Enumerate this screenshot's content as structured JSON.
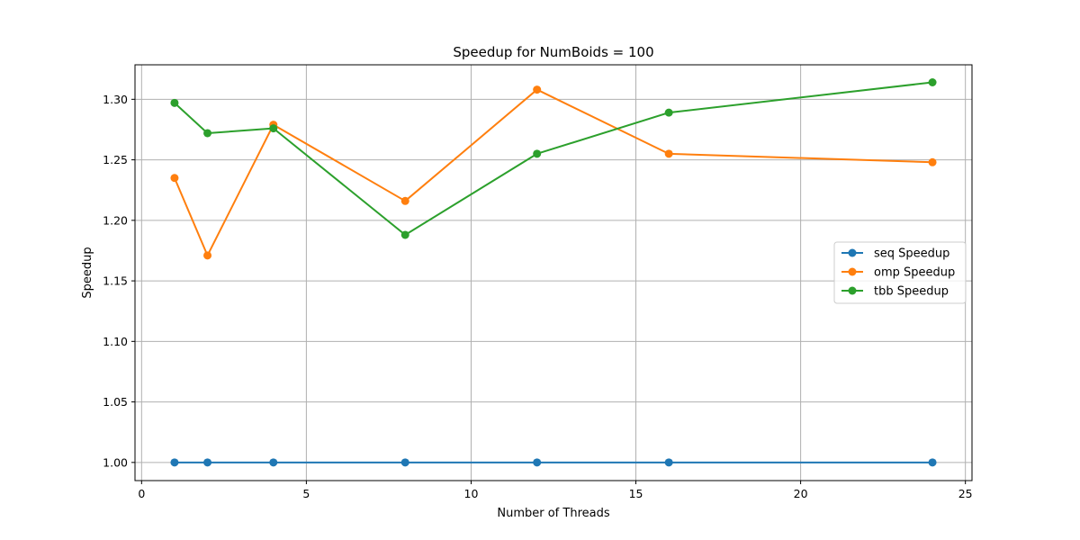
{
  "chart_data": {
    "type": "line",
    "title": "Speedup for NumBoids = 100",
    "xlabel": "Number of Threads",
    "ylabel": "Speedup",
    "xlim": [
      -0.2,
      25.2
    ],
    "ylim": [
      0.985,
      1.3285
    ],
    "xticks": [
      0,
      5,
      10,
      15,
      20,
      25
    ],
    "xtick_labels": [
      "0",
      "5",
      "10",
      "15",
      "20",
      "25"
    ],
    "yticks": [
      1.0,
      1.05,
      1.1,
      1.15,
      1.2,
      1.25,
      1.3
    ],
    "ytick_labels": [
      "1.00",
      "1.05",
      "1.10",
      "1.15",
      "1.20",
      "1.25",
      "1.30"
    ],
    "grid": true,
    "legend_position": "center-right",
    "x": [
      1,
      2,
      4,
      8,
      12,
      16,
      24
    ],
    "series": [
      {
        "name": "seq Speedup",
        "color": "#1f77b4",
        "values": [
          1.0,
          1.0,
          1.0,
          1.0,
          1.0,
          1.0,
          1.0
        ]
      },
      {
        "name": "omp Speedup",
        "color": "#ff7f0e",
        "values": [
          1.235,
          1.171,
          1.279,
          1.216,
          1.308,
          1.255,
          1.248
        ]
      },
      {
        "name": "tbb Speedup",
        "color": "#2ca02c",
        "values": [
          1.297,
          1.272,
          1.276,
          1.188,
          1.255,
          1.289,
          1.314
        ]
      }
    ]
  }
}
